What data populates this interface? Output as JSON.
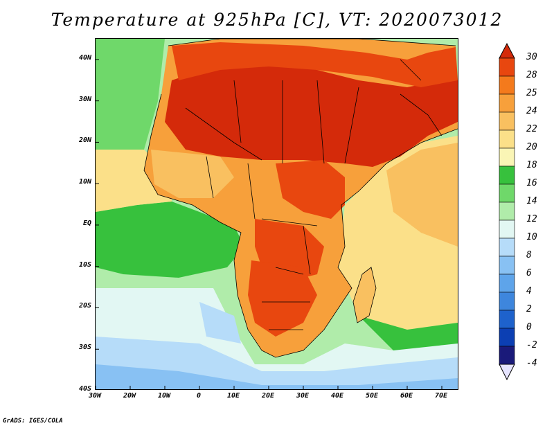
{
  "title": "Temperature at 925hPa [C], VT: 2020073012",
  "credit": "GrADS: IGES/COLA",
  "map": {
    "lon_range": [
      -30,
      75
    ],
    "lat_range": [
      -40,
      45
    ],
    "lat_labels": [
      "40N",
      "30N",
      "20N",
      "10N",
      "EQ",
      "10S",
      "20S",
      "30S",
      "40S"
    ],
    "lat_values": [
      40,
      30,
      20,
      10,
      0,
      -10,
      -20,
      -30,
      -40
    ],
    "lon_labels": [
      "30W",
      "20W",
      "10W",
      "0",
      "10E",
      "20E",
      "30E",
      "40E",
      "50E",
      "60E",
      "70E"
    ],
    "lon_values": [
      -30,
      -20,
      -10,
      0,
      10,
      20,
      30,
      40,
      50,
      60,
      70
    ],
    "variable": "Temperature",
    "level": "925hPa",
    "units": "C"
  },
  "colorbar": {
    "labels": [
      "30",
      "28",
      "25",
      "24",
      "22",
      "20",
      "18",
      "16",
      "14",
      "12",
      "10",
      "8",
      "6",
      "4",
      "2",
      "0",
      "-2",
      "-4"
    ],
    "colors": [
      "#d42a0a",
      "#e8470f",
      "#f47a1c",
      "#f7a03b",
      "#f9c060",
      "#fbe089",
      "#faf5b5",
      "#37c13d",
      "#6fd86a",
      "#b0ecaa",
      "#e2f7f3",
      "#b6dcf9",
      "#88c1f3",
      "#5ea4ea",
      "#3e86dd",
      "#1e62cc",
      "#0c3fb3",
      "#1a1a7a",
      "#e6e4ff"
    ]
  }
}
